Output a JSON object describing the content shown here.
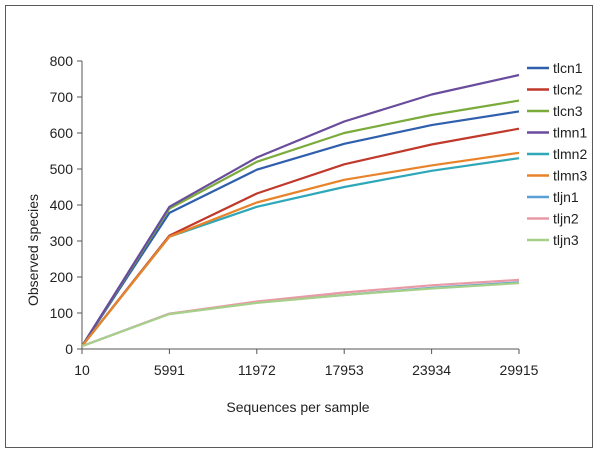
{
  "chart_data": {
    "type": "line",
    "title": "",
    "xlabel": "Sequences per sample",
    "ylabel": "Observed species",
    "categories": [
      "10",
      "5991",
      "11972",
      "17953",
      "23934",
      "29915"
    ],
    "ylim": [
      0,
      800
    ],
    "yticks": [
      0,
      100,
      200,
      300,
      400,
      500,
      600,
      700,
      800
    ],
    "grid": false,
    "legend_position": "right",
    "series": [
      {
        "name": "tlcn1",
        "color": "#2f5fad",
        "values": [
          8,
          378,
          498,
          570,
          622,
          660
        ]
      },
      {
        "name": "tlcn2",
        "color": "#c0392b",
        "values": [
          8,
          315,
          432,
          513,
          568,
          612
        ]
      },
      {
        "name": "tlcn3",
        "color": "#7aab3c",
        "values": [
          8,
          390,
          520,
          600,
          650,
          690
        ]
      },
      {
        "name": "tlmn1",
        "color": "#6a4c9c",
        "values": [
          8,
          395,
          532,
          632,
          707,
          761
        ]
      },
      {
        "name": "tlmn2",
        "color": "#2ea8b8",
        "values": [
          8,
          312,
          395,
          450,
          495,
          530
        ]
      },
      {
        "name": "tlmn3",
        "color": "#e8832a",
        "values": [
          8,
          312,
          407,
          470,
          510,
          545
        ]
      },
      {
        "name": "tljn1",
        "color": "#5a9fd4",
        "values": [
          8,
          98,
          130,
          150,
          170,
          185
        ]
      },
      {
        "name": "tljn2",
        "color": "#e89aa6",
        "values": [
          8,
          98,
          132,
          157,
          177,
          192
        ]
      },
      {
        "name": "tljn3",
        "color": "#a6d08a",
        "values": [
          8,
          97,
          128,
          150,
          168,
          183
        ]
      }
    ]
  }
}
